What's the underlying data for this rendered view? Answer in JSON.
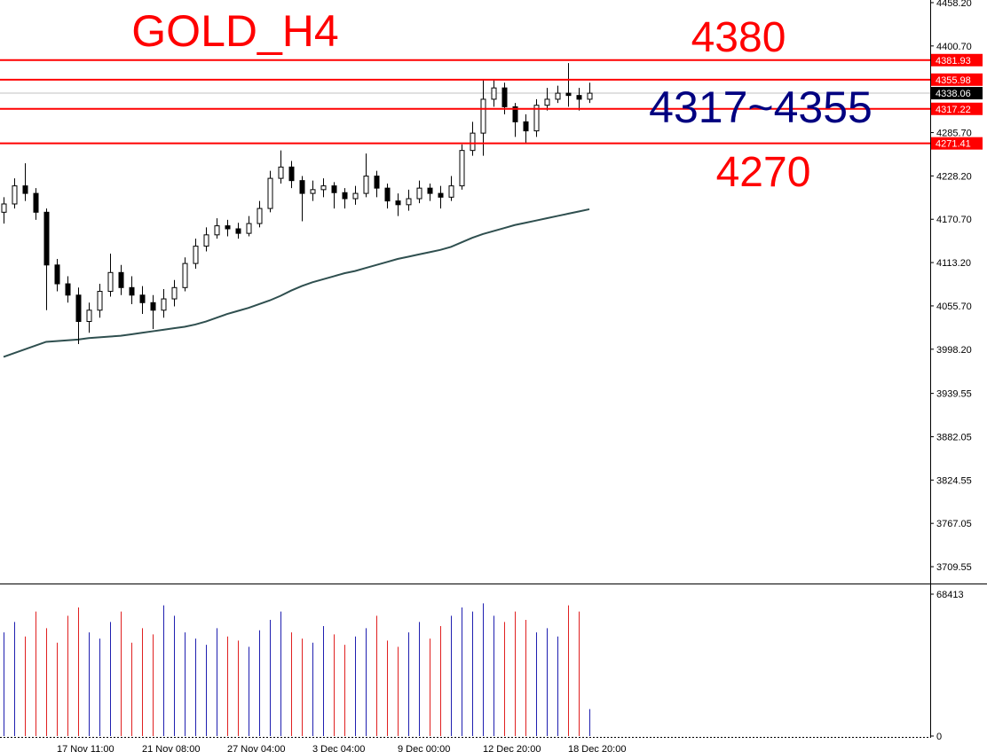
{
  "chart_data": {
    "type": "candlestick",
    "title": "GOLD_H4",
    "annotations": [
      {
        "text": "4380",
        "color": "#ff0000"
      },
      {
        "text": "4317~4355",
        "color": "#000080"
      },
      {
        "text": "4270",
        "color": "#ff0000"
      }
    ],
    "open": [
      4180,
      4191,
      4215,
      4205,
      4180,
      4110,
      4085,
      4070,
      4035,
      4050,
      4075,
      4100,
      4080,
      4070,
      4060,
      4050,
      4065,
      4080,
      4112,
      4135,
      4150,
      4162,
      4158,
      4152,
      4165,
      4185,
      4225,
      4240,
      4222,
      4205,
      4210,
      4215,
      4206,
      4198,
      4205,
      4228,
      4212,
      4195,
      4190,
      4198,
      4212,
      4205,
      4200,
      4215,
      4262,
      4285,
      4330,
      4345,
      4320,
      4300,
      4288,
      4322,
      4330,
      4338,
      4335,
      4330
    ],
    "high": [
      4200,
      4225,
      4245,
      4212,
      4185,
      4118,
      4095,
      4080,
      4060,
      4085,
      4125,
      4110,
      4095,
      4082,
      4070,
      4078,
      4090,
      4120,
      4145,
      4160,
      4172,
      4170,
      4166,
      4175,
      4195,
      4235,
      4262,
      4248,
      4228,
      4222,
      4225,
      4220,
      4212,
      4215,
      4258,
      4235,
      4218,
      4205,
      4210,
      4222,
      4218,
      4215,
      4228,
      4270,
      4300,
      4355,
      4355,
      4352,
      4325,
      4310,
      4330,
      4345,
      4348,
      4378,
      4345,
      4352
    ],
    "low": [
      4165,
      4185,
      4195,
      4170,
      4050,
      4075,
      4060,
      4005,
      4020,
      4040,
      4068,
      4070,
      4058,
      4045,
      4025,
      4040,
      4055,
      4075,
      4105,
      4128,
      4145,
      4148,
      4145,
      4148,
      4160,
      4180,
      4218,
      4212,
      4168,
      4195,
      4200,
      4185,
      4185,
      4190,
      4200,
      4200,
      4185,
      4175,
      4182,
      4192,
      4195,
      4185,
      4195,
      4210,
      4255,
      4255,
      4320,
      4310,
      4280,
      4272,
      4280,
      4315,
      4325,
      4320,
      4315,
      4325
    ],
    "close": [
      4191,
      4215,
      4205,
      4180,
      4110,
      4085,
      4070,
      4035,
      4050,
      4075,
      4100,
      4080,
      4070,
      4060,
      4050,
      4065,
      4080,
      4112,
      4135,
      4150,
      4162,
      4158,
      4152,
      4165,
      4185,
      4225,
      4240,
      4222,
      4205,
      4210,
      4215,
      4206,
      4198,
      4205,
      4228,
      4212,
      4195,
      4190,
      4198,
      4212,
      4205,
      4200,
      4215,
      4262,
      4285,
      4330,
      4345,
      4320,
      4300,
      4288,
      4322,
      4330,
      4338,
      4335,
      4330,
      4338
    ],
    "ma": {
      "color": "#2f4f4f",
      "values": [
        3988,
        3993,
        3998,
        4003,
        4008,
        4009,
        4010,
        4011,
        4013,
        4014,
        4015,
        4016,
        4018,
        4020,
        4022,
        4024,
        4026,
        4028,
        4031,
        4035,
        4040,
        4045,
        4049,
        4053,
        4058,
        4063,
        4069,
        4076,
        4082,
        4087,
        4091,
        4095,
        4099,
        4102,
        4106,
        4110,
        4114,
        4118,
        4121,
        4124,
        4127,
        4130,
        4134,
        4140,
        4146,
        4151,
        4155,
        4159,
        4163,
        4166,
        4169,
        4172,
        4175,
        4178,
        4181,
        4184
      ]
    },
    "ylim": [
      3688.4,
      4461.7
    ],
    "yticks": [
      {
        "value": 4458.2,
        "label": "4458.20"
      },
      {
        "value": 4400.7,
        "label": "4400.70"
      },
      {
        "value": 4285.7,
        "label": "4285.70"
      },
      {
        "value": 4228.2,
        "label": "4228.20"
      },
      {
        "value": 4170.7,
        "label": "4170.70"
      },
      {
        "value": 4113.2,
        "label": "4113.20"
      },
      {
        "value": 4055.7,
        "label": "4055.70"
      },
      {
        "value": 3998.2,
        "label": "3998.20"
      },
      3939.55,
      3882.05,
      3824.55,
      3767.05,
      3709.55
    ],
    "levels": [
      4381.93,
      4355.98,
      4317.22,
      4271.41
    ],
    "level_color": "#ff0000",
    "last_price": 4338.06,
    "xlabels": [
      "17 Nov 11:00",
      "21 Nov 08:00",
      "27 Nov 04:00",
      "3 Dec 04:00",
      "9 Dec 00:00",
      "12 Dec 20:00",
      "18 Dec 20:00"
    ],
    "volume": {
      "ylim": [
        0,
        68413
      ],
      "yticks": [
        68413,
        0
      ],
      "up_color": "#1f1fb0",
      "down_color": "#e02020",
      "values": [
        50000,
        55000,
        48000,
        60000,
        52000,
        45000,
        58000,
        62000,
        50000,
        47000,
        55000,
        60000,
        45000,
        52000,
        49000,
        63000,
        58000,
        50000,
        47000,
        44000,
        52000,
        48000,
        46000,
        43000,
        51000,
        56000,
        60000,
        50000,
        47000,
        45000,
        53000,
        49000,
        44000,
        48000,
        52000,
        58000,
        46000,
        43000,
        50000,
        55000,
        47000,
        53000,
        58000,
        62000,
        60000,
        64000,
        58000,
        55000,
        60000,
        56000,
        50000,
        52000,
        48000,
        63000,
        60000,
        13000
      ]
    }
  }
}
